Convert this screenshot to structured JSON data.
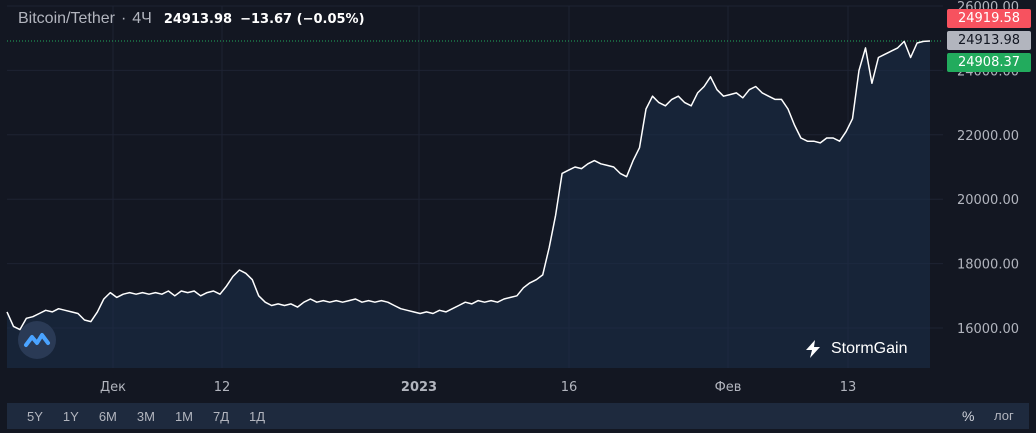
{
  "header": {
    "symbol": "Bitcoin/Tether",
    "separator": "·",
    "interval": "4Ч",
    "last_price": "24913.98",
    "change": "−13.67 (−0.05%)"
  },
  "price_labels": {
    "high": "24919.58",
    "last": "24913.98",
    "low": "24908.37"
  },
  "bottom_bar": {
    "ranges": [
      "5Y",
      "1Y",
      "6M",
      "3M",
      "1M",
      "7Д",
      "1Д"
    ],
    "percent": "%",
    "log": "лог"
  },
  "brand": {
    "name": "StormGain"
  },
  "colors": {
    "background": "#131722",
    "line": "#ffffff",
    "high_label": "#f7525f",
    "last_label": "#b2b5be",
    "low_label": "#22ab5d",
    "area_fill": "#1e3a5f"
  },
  "chart_data": {
    "type": "area",
    "ylim": [
      15000,
      26000
    ],
    "y_ticks": [
      16000,
      18000,
      20000,
      22000,
      24000,
      26000
    ],
    "y_tick_labels": [
      "16000.00",
      "18000.00",
      "20000.00",
      "22000.00",
      "24000.00",
      "26000.00"
    ],
    "x_tick_labels": [
      "Дек",
      "12",
      "2023",
      "16",
      "Фев",
      "13"
    ],
    "grid": true,
    "series": [
      {
        "values": [
          16500,
          16050,
          15950,
          16300,
          16350,
          16450,
          16550,
          16500,
          16600,
          16550,
          16500,
          16450,
          16250,
          16200,
          16500,
          16900,
          17100,
          16950,
          17050,
          17100,
          17050,
          17100,
          17050,
          17100,
          17050,
          17150,
          17000,
          17150,
          17100,
          17150,
          17000,
          17100,
          17150,
          17050,
          17300,
          17600,
          17800,
          17700,
          17500,
          17000,
          16800,
          16700,
          16750,
          16700,
          16750,
          16650,
          16800,
          16900,
          16800,
          16850,
          16800,
          16850,
          16800,
          16850,
          16900,
          16800,
          16850,
          16800,
          16850,
          16800,
          16700,
          16600,
          16550,
          16500,
          16450,
          16500,
          16450,
          16550,
          16500,
          16600,
          16700,
          16800,
          16750,
          16850,
          16800,
          16850,
          16800,
          16900,
          16950,
          17000,
          17250,
          17400,
          17500,
          17650,
          18500,
          19500,
          20800,
          20900,
          21000,
          20950,
          21100,
          21200,
          21100,
          21050,
          21000,
          20800,
          20700,
          21200,
          21600,
          22800,
          23200,
          23000,
          22900,
          23100,
          23200,
          23000,
          22900,
          23300,
          23500,
          23800,
          23400,
          23200,
          23250,
          23300,
          23150,
          23400,
          23500,
          23300,
          23200,
          23100,
          23100,
          22800,
          22300,
          21900,
          21800,
          21800,
          21750,
          21900,
          21900,
          21800,
          22100,
          22500,
          24000,
          24700,
          23600,
          24400,
          24500,
          24600,
          24700,
          24900,
          24400,
          24850,
          24900,
          24913.98
        ]
      }
    ],
    "annotations": [
      "24919.58",
      "24913.98",
      "24908.37"
    ]
  }
}
